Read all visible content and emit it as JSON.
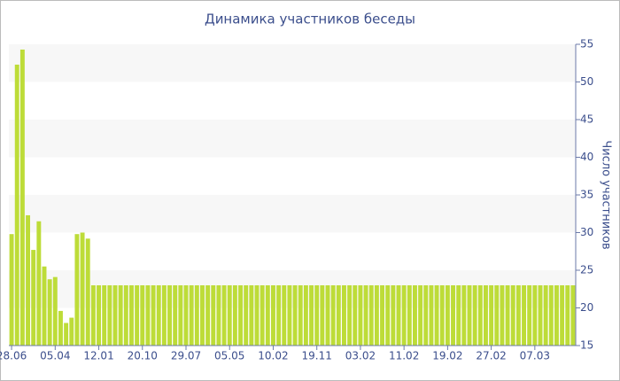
{
  "chart_data": {
    "type": "bar",
    "title": "Динамика участников беседы",
    "y_label": "Число участников",
    "categories": [
      "28.06",
      null,
      null,
      null,
      null,
      null,
      null,
      null,
      "05.04",
      null,
      null,
      null,
      null,
      null,
      null,
      null,
      "12.01",
      null,
      null,
      null,
      null,
      null,
      null,
      null,
      "20.10",
      null,
      null,
      null,
      null,
      null,
      null,
      null,
      "29.07",
      null,
      null,
      null,
      null,
      null,
      null,
      null,
      "05.05",
      null,
      null,
      null,
      null,
      null,
      null,
      null,
      "10.02",
      null,
      null,
      null,
      null,
      null,
      null,
      null,
      "19.11",
      null,
      null,
      null,
      null,
      null,
      null,
      null,
      "03.02",
      null,
      null,
      null,
      null,
      null,
      null,
      null,
      "11.02",
      null,
      null,
      null,
      null,
      null,
      null,
      null,
      "19.02",
      null,
      null,
      null,
      null,
      null,
      null,
      null,
      "27.02",
      null,
      null,
      null,
      null,
      null,
      null,
      null,
      "07.03",
      null,
      null,
      null,
      null,
      null,
      null,
      null
    ],
    "values": [
      29.8,
      52.3,
      54.3,
      32.3,
      27.7,
      31.5,
      25.5,
      23.8,
      24.1,
      19.6,
      18.0,
      18.7,
      29.8,
      30.0,
      29.2,
      23,
      23,
      23,
      23,
      23,
      23,
      23,
      23,
      23,
      23,
      23,
      23,
      23,
      23,
      23,
      23,
      23,
      23,
      23,
      23,
      23,
      23,
      23,
      23,
      23,
      23,
      23,
      23,
      23,
      23,
      23,
      23,
      23,
      23,
      23,
      23,
      23,
      23,
      23,
      23,
      23,
      23,
      23,
      23,
      23,
      23,
      23,
      23,
      23,
      23,
      23,
      23,
      23,
      23,
      23,
      23,
      23,
      23,
      23,
      23,
      23,
      23,
      23,
      23,
      23,
      23,
      23,
      23,
      23,
      23,
      23,
      23,
      23,
      23,
      23,
      23,
      23,
      23,
      23,
      23,
      23,
      23,
      23,
      23,
      23,
      23,
      23,
      23,
      23
    ],
    "color": "#bddc38",
    "ylim": [
      15,
      55
    ],
    "yticks": [
      15,
      20,
      25,
      30,
      35,
      40,
      45,
      50,
      55
    ],
    "bands": true
  }
}
